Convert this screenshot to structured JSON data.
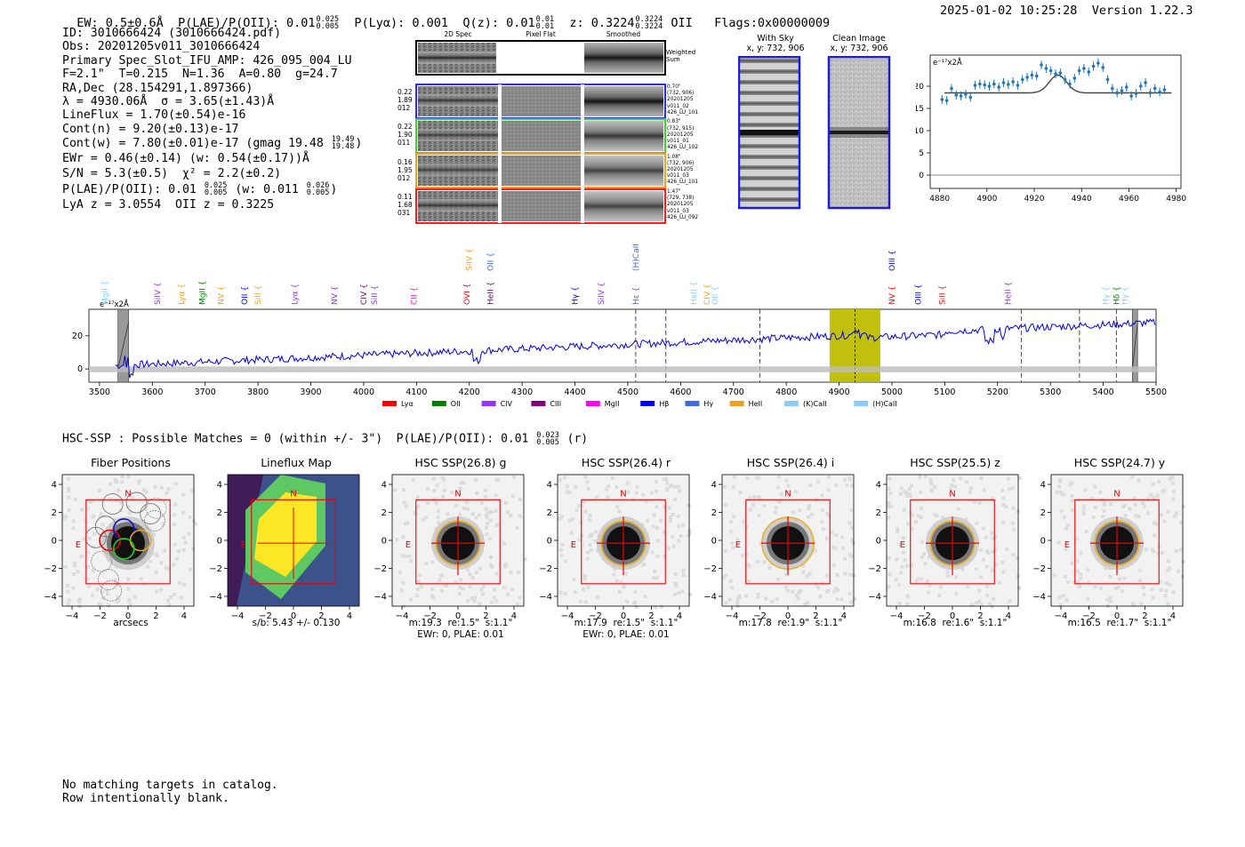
{
  "header": {
    "ew": "EW: 0.5±0.6Å",
    "plae_label": "P(LAE)/P(OII): 0.01",
    "plae_hi": "0.025",
    "plae_lo": "0.005",
    "plya": "P(Lyα): 0.001",
    "qz_label": "Q(z): 0.01",
    "qz_hi": "0.01",
    "qz_lo": "0.01",
    "z_label": "z: 0.3224",
    "z_hi": "0.3224",
    "z_lo": "0.3224",
    "z_type": "OII",
    "flags": "Flags:0x00000009",
    "datetime": "2025-01-02 10:25:28",
    "version": "Version 1.22.3"
  },
  "info": {
    "id": "ID: 3010666424 (3010666424.pdf)",
    "obs": "Obs: 20201205v011_3010666424",
    "primary": "Primary Spec_Slot_IFU_AMP: 426_095_004_LU",
    "fwhm": "F=2.1\"  T=0.215  N=1.36  A=0.80  g=24.7",
    "radec": "RA,Dec (28.154291,1.897366)",
    "lambda": "λ = 4930.06Å  σ = 3.65(±1.43)Å",
    "lineflux": "LineFlux = 1.70(±0.54)e-16",
    "contn": "Cont(n) = 9.20(±0.13)e-17",
    "contw": "Cont(w) = 7.80(±0.01)e-17 (gmag 19.48",
    "contw_hi": "19.49",
    "contw_lo": "19.48",
    "contw_end": ")",
    "ewr": "EWr = 0.46(±0.14) (w: 0.54(±0.17))Å",
    "sn": "S/N = 5.3(±0.5)  χ² = 2.2(±0.2)",
    "plae": "P(LAE)/P(OII): 0.01",
    "plae_hi": "0.025",
    "plae_lo": "0.005",
    "plae_w": "(w: 0.011",
    "plae_w_hi": "0.026",
    "plae_w_lo": "0.005",
    "plae_end": ")",
    "lya": "LyA z = 3.0554  OII z = 0.3225"
  },
  "cutouts": {
    "col_2d": "2D Spec",
    "col_flat": "Pixel Flat",
    "col_smooth": "Smoothed",
    "weighted": "Weighted\nSum",
    "rows": [
      {
        "left": "0.22\n1.89\n012",
        "right": "0.70\"\n(732, 906)\n20201205\nv011_02\n426_LU_101",
        "color": "#2a2aff"
      },
      {
        "left": "0.22\n1.90\n011",
        "right": "0.83\"\n(732, 915)\n20201205\nv011_01\n426_LU_102",
        "color": "#39d52a"
      },
      {
        "left": "0.16\n1.95\n012",
        "right": "1.08\"\n(732, 906)\n20201205\nv011_03\n426_LU_101",
        "color": "#f0a020"
      },
      {
        "left": "0.11\n1.68\n031",
        "right": "1.47\"\n(729, 738)\n20201205\nv011_03\n426_LU_092",
        "color": "#ff1a1a"
      }
    ]
  },
  "sky": {
    "with_sky": "With Sky",
    "with_sky_xy": "x, y: 732, 906",
    "clean": "Clean Image",
    "clean_xy": "x, y: 732, 906"
  },
  "zoom_plot": {
    "unit": "e⁻¹⁷x2Å",
    "xticks": [
      "4880",
      "4900",
      "4920",
      "4940",
      "4960",
      "4980"
    ],
    "yticks": [
      "0",
      "5",
      "10",
      "15",
      "20"
    ]
  },
  "spectrum": {
    "unit": "e⁻¹⁷x2Å",
    "xticks": [
      "3500",
      "3600",
      "3700",
      "3800",
      "3900",
      "4000",
      "4100",
      "4200",
      "4300",
      "4400",
      "4500",
      "4600",
      "4700",
      "4800",
      "4900",
      "5000",
      "5100",
      "5200",
      "5300",
      "5400",
      "5500"
    ],
    "yticks": [
      "0",
      "20"
    ],
    "lines": [
      {
        "label": "MgII",
        "color": "#87cefa",
        "pos": 3510,
        "level": 1
      },
      {
        "label": "SiIV",
        "color": "#9b30ff",
        "pos": 3610,
        "level": 1
      },
      {
        "label": "Lyα",
        "color": "#f0a020",
        "pos": 3655,
        "level": 1
      },
      {
        "label": "MgII",
        "color": "#008000",
        "pos": 3695,
        "level": 1
      },
      {
        "label": "NV",
        "color": "#f0a020",
        "pos": 3730,
        "level": 1
      },
      {
        "label": "OII",
        "color": "#0000ff",
        "pos": 3775,
        "level": 1
      },
      {
        "label": "SiII",
        "color": "#f0a020",
        "pos": 3800,
        "level": 1
      },
      {
        "label": "Lyα",
        "color": "#9b30ff",
        "pos": 3870,
        "level": 1
      },
      {
        "label": "NV",
        "color": "#9b30ff",
        "pos": 3945,
        "level": 1
      },
      {
        "label": "CIV",
        "color": "#800080",
        "pos": 4000,
        "level": 1
      },
      {
        "label": "SiII",
        "color": "#9b30ff",
        "pos": 4020,
        "level": 1
      },
      {
        "label": "CII",
        "color": "#ff00ff",
        "pos": 4095,
        "level": 1
      },
      {
        "label": "SiIV",
        "color": "#f0a020",
        "pos": 4200,
        "level": 2
      },
      {
        "label": "OII",
        "color": "#4169e1",
        "pos": 4240,
        "level": 2
      },
      {
        "label": "OVI",
        "color": "#ff0000",
        "pos": 4195,
        "level": 1
      },
      {
        "label": "HeII",
        "color": "#800080",
        "pos": 4240,
        "level": 1
      },
      {
        "label": "Hγ",
        "color": "#0000ff",
        "pos": 4400,
        "level": 1
      },
      {
        "label": "SiIV",
        "color": "#9b30ff",
        "pos": 4450,
        "level": 1
      },
      {
        "label": "(H)CaII",
        "color": "#4169e1",
        "pos": 4515,
        "level": 2
      },
      {
        "label": "Hε",
        "color": "#4169e1",
        "pos": 4515,
        "level": 1
      },
      {
        "label": "HeII",
        "color": "#87cefa",
        "pos": 4625,
        "level": 1
      },
      {
        "label": "CIV",
        "color": "#f0a020",
        "pos": 4650,
        "level": 1
      },
      {
        "label": "OII",
        "color": "#87cefa",
        "pos": 4665,
        "level": 1
      },
      {
        "label": "OIII",
        "color": "#0000ff",
        "pos": 5000,
        "level": 2
      },
      {
        "label": "NV",
        "color": "#ff0000",
        "pos": 5000,
        "level": 1
      },
      {
        "label": "OIII",
        "color": "#0000ff",
        "pos": 5050,
        "level": 1
      },
      {
        "label": "SiII",
        "color": "#ff0000",
        "pos": 5095,
        "level": 1
      },
      {
        "label": "HeII",
        "color": "#9b30ff",
        "pos": 5220,
        "level": 1
      },
      {
        "label": "Hγ",
        "color": "#87cefa",
        "pos": 5405,
        "level": 1
      },
      {
        "label": "Hδ",
        "color": "#008000",
        "pos": 5425,
        "level": 1
      },
      {
        "label": "Hγ",
        "color": "#87cefa",
        "pos": 5440,
        "level": 1
      }
    ],
    "legend": [
      {
        "label": "Lyα",
        "color": "#ff0000"
      },
      {
        "label": "OII",
        "color": "#008000"
      },
      {
        "label": "CIV",
        "color": "#9b30ff"
      },
      {
        "label": "CIII",
        "color": "#800080"
      },
      {
        "label": "MgII",
        "color": "#ff00ff"
      },
      {
        "label": "Hβ",
        "color": "#0000ff"
      },
      {
        "label": "Hγ",
        "color": "#4169e1"
      },
      {
        "label": "HeII",
        "color": "#f0a020"
      },
      {
        "label": "(K)CaII",
        "color": "#87cefa"
      },
      {
        "label": "(H)CaII",
        "color": "#87cefa"
      }
    ]
  },
  "hsc": {
    "summary": "HSC-SSP : Possible Matches = 0 (within +/- 3\")  P(LAE)/P(OII): 0.01",
    "summary_hi": "0.023",
    "summary_lo": "0.005",
    "summary_end": "(r)"
  },
  "panels": [
    {
      "title": "Fiber Positions",
      "cap1": "arcsecs",
      "cap2": ""
    },
    {
      "title": "Lineflux Map",
      "cap1": "s/b: 5.43 +/- 0.130",
      "cap2": ""
    },
    {
      "title": "HSC SSP(26.8) g",
      "cap1": "m:19.3  re:1.5\"  s:1.1\"",
      "cap2": "EWr: 0, PLAE: 0.01"
    },
    {
      "title": "HSC SSP(26.4) r",
      "cap1": "m:17.9  re:1.5\"  s:1.1\"",
      "cap2": "EWr: 0, PLAE: 0.01"
    },
    {
      "title": "HSC SSP(26.4) i",
      "cap1": "m:17.8  re:1.9\"  s:1.1\"",
      "cap2": ""
    },
    {
      "title": "HSC SSP(25.5) z",
      "cap1": "m:16.8  re:1.6\"  s:1.1\"",
      "cap2": ""
    },
    {
      "title": "HSC SSP(24.7) y",
      "cap1": "m:16.5  re:1.7\"  s:1.1\"",
      "cap2": ""
    }
  ],
  "panel_ticks": {
    "x": [
      "−4",
      "−2",
      "0",
      "2",
      "4"
    ],
    "y": [
      "4",
      "2",
      "0",
      "−2",
      "−4"
    ],
    "north": "N",
    "east": "E"
  },
  "footer": {
    "line1": "No matching targets in catalog.",
    "line2": "Row intentionally blank."
  }
}
